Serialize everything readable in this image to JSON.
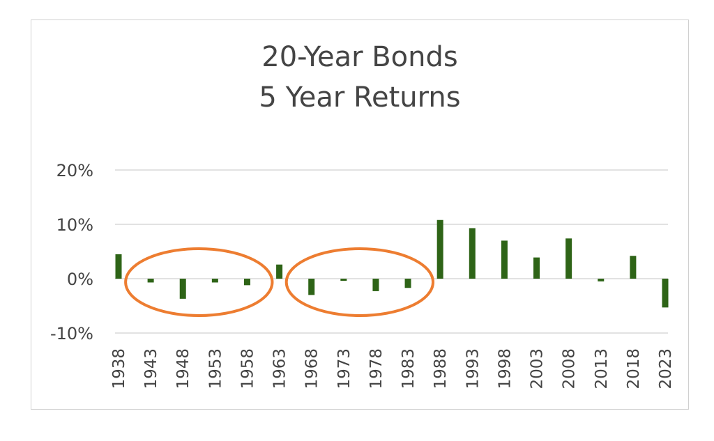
{
  "chart_data": {
    "type": "bar",
    "title": [
      "20-Year Bonds",
      "5 Year Returns"
    ],
    "xlabel": "",
    "ylabel": "",
    "ylim": [
      -10,
      20
    ],
    "yticks": [
      20,
      10,
      0,
      -10
    ],
    "ytick_labels": [
      "20%",
      "10%",
      "0%",
      "-10%"
    ],
    "grid": true,
    "bar_color": "#2e6417",
    "highlight_color": "#ed7d31",
    "categories": [
      "1938",
      "1943",
      "1948",
      "1953",
      "1958",
      "1963",
      "1968",
      "1973",
      "1978",
      "1983",
      "1988",
      "1993",
      "1998",
      "2003",
      "2008",
      "2013",
      "2018",
      "2023"
    ],
    "values": [
      4.5,
      -0.7,
      -3.7,
      -0.7,
      -1.2,
      2.6,
      -3.0,
      -0.4,
      -2.3,
      -1.7,
      10.8,
      9.3,
      7.0,
      3.9,
      7.4,
      -0.5,
      4.2,
      -5.3
    ],
    "highlights": [
      {
        "from": "1943",
        "to": "1958"
      },
      {
        "from": "1968",
        "to": "1983"
      }
    ]
  }
}
